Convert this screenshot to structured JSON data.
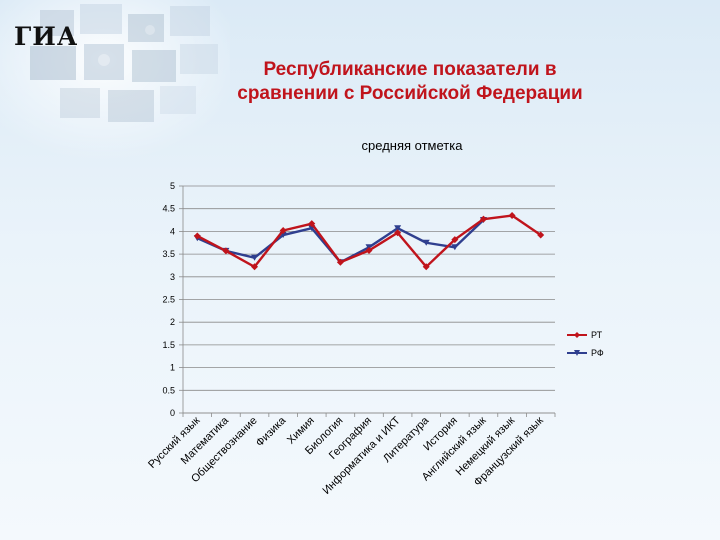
{
  "slide": {
    "logo": "ГИА",
    "title_line1": "Республиканские показатели в",
    "title_line2": "сравнении с Российской Федерации"
  },
  "chart_data": {
    "type": "line",
    "title": "средняя отметка",
    "xlabel": "",
    "ylabel": "",
    "ylim": [
      0,
      5
    ],
    "yticks": [
      "0",
      "0.5",
      "1",
      "1.5",
      "2",
      "2.5",
      "3",
      "3.5",
      "4",
      "4.5",
      "5"
    ],
    "grid": true,
    "legend_position": "right",
    "categories": [
      "Русский язык",
      "Математика",
      "Обществознание",
      "Физика",
      "Химия",
      "Биология",
      "География",
      "Информатика и ИКТ",
      "Литература",
      "История",
      "Английский язык",
      "Немецкий язык",
      "Французский язык"
    ],
    "series": [
      {
        "name": "РТ",
        "color": "#c0141c",
        "values": [
          3.9,
          3.57,
          3.22,
          4.02,
          4.17,
          3.32,
          3.58,
          3.97,
          3.22,
          3.82,
          4.27,
          4.35,
          3.92
        ]
      },
      {
        "name": "РФ",
        "color": "#2f3f8f",
        "values": [
          3.85,
          3.57,
          3.42,
          3.92,
          4.07,
          3.32,
          3.65,
          4.07,
          3.75,
          3.65,
          4.25,
          null,
          null
        ]
      }
    ]
  }
}
